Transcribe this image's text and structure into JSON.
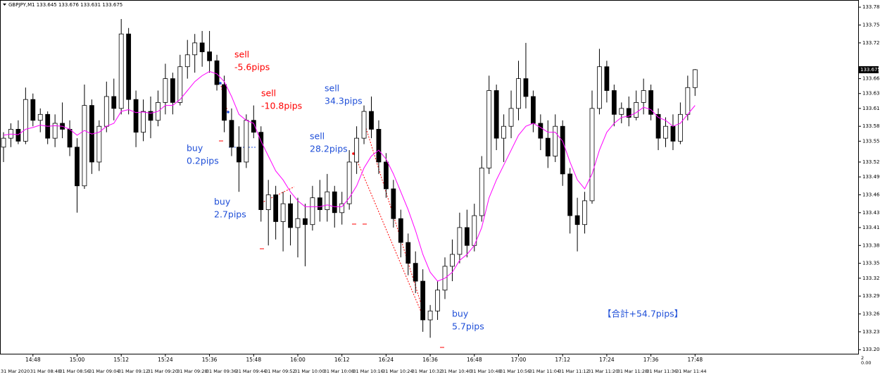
{
  "chart_data": {
    "type": "candlestick",
    "header": "GBPJPY,M1 133.645 133.676 133.631 133.675",
    "up_color": "#ffffff",
    "down_color": "#000000",
    "ma_color": "#ff00ff",
    "ylim": [
      133.197,
      133.792
    ],
    "yticks": [
      {
        "value": 133.78,
        "label": "133.780"
      },
      {
        "value": 133.75,
        "label": "133.750"
      },
      {
        "value": 133.72,
        "label": "133.720"
      },
      {
        "value": 133.66,
        "label": "133.660"
      },
      133.635,
      {
        "value": 133.61,
        "label": "133.610"
      },
      {
        "value": 133.58,
        "label": "133.580"
      },
      133.555,
      {
        "value": 133.52,
        "label": "133.520"
      },
      133.495,
      133.465,
      133.435,
      {
        "value": 133.41,
        "label": "133.410"
      },
      {
        "value": 133.38,
        "label": "133.380"
      },
      {
        "value": 133.35,
        "label": "133.350"
      },
      133.325,
      133.295,
      133.265,
      133.235,
      133.205
    ],
    "current_price": 133.675,
    "categories": [
      null,
      null,
      null,
      null,
      "14:48",
      null,
      null,
      null,
      null,
      null,
      "15:00",
      null,
      null,
      null,
      null,
      null,
      "15:12",
      null,
      null,
      null,
      null,
      null,
      "15:24",
      null,
      null,
      null,
      null,
      null,
      "15:36",
      null,
      null,
      null,
      null,
      null,
      "15:48",
      null,
      null,
      null,
      null,
      null,
      "16:00",
      null,
      null,
      null,
      null,
      null,
      "16:12",
      null,
      null,
      null,
      null,
      null,
      "16:24",
      null,
      null,
      null,
      null,
      null,
      "16:36",
      null,
      null,
      null,
      null,
      null,
      "16:48",
      null,
      null,
      null,
      null,
      null,
      "17:00",
      null,
      null,
      null,
      null,
      null,
      "17:12",
      null,
      null,
      null,
      null,
      null,
      "17:24",
      null,
      null,
      null,
      null,
      null,
      "17:36",
      null,
      null,
      null,
      null,
      null,
      "17:48"
    ],
    "candles": [
      [
        133.545,
        133.57,
        133.52,
        133.56
      ],
      [
        133.56,
        133.585,
        133.545,
        133.575
      ],
      [
        133.575,
        133.59,
        133.55,
        133.555
      ],
      [
        133.555,
        133.645,
        133.55,
        133.625
      ],
      [
        133.625,
        133.635,
        133.58,
        133.59
      ],
      [
        133.59,
        133.61,
        133.57,
        133.6
      ],
      [
        133.6,
        133.605,
        133.55,
        133.56
      ],
      [
        133.56,
        133.6,
        133.545,
        133.585
      ],
      [
        133.585,
        133.62,
        133.56,
        133.575
      ],
      [
        133.575,
        133.59,
        133.53,
        133.545
      ],
      [
        133.545,
        133.56,
        133.435,
        133.48
      ],
      [
        133.48,
        133.65,
        133.475,
        133.615
      ],
      [
        133.615,
        133.625,
        133.5,
        133.52
      ],
      [
        133.52,
        133.59,
        133.505,
        133.58
      ],
      [
        133.58,
        133.655,
        133.57,
        133.63
      ],
      [
        133.63,
        133.66,
        133.59,
        133.61
      ],
      [
        133.61,
        133.76,
        133.6,
        133.735
      ],
      [
        133.735,
        133.745,
        133.6,
        133.625
      ],
      [
        133.625,
        133.64,
        133.545,
        133.57
      ],
      [
        133.57,
        133.625,
        133.555,
        133.605
      ],
      [
        133.605,
        133.63,
        133.56,
        133.59
      ],
      [
        133.59,
        133.64,
        133.58,
        133.62
      ],
      [
        133.62,
        133.685,
        133.6,
        133.66
      ],
      [
        133.66,
        133.67,
        133.6,
        133.62
      ],
      [
        133.62,
        133.7,
        133.615,
        133.68
      ],
      [
        133.68,
        133.725,
        133.66,
        133.7
      ],
      [
        133.7,
        133.735,
        133.67,
        133.72
      ],
      [
        133.72,
        133.74,
        133.68,
        133.705
      ],
      [
        133.705,
        133.74,
        133.67,
        133.69
      ],
      [
        133.69,
        133.7,
        133.64,
        133.65
      ],
      [
        133.65,
        133.665,
        133.57,
        133.59
      ],
      [
        133.59,
        133.61,
        133.53,
        133.545
      ],
      [
        133.545,
        133.58,
        133.47,
        133.52
      ],
      [
        133.52,
        133.6,
        133.51,
        133.59
      ],
      [
        133.59,
        133.615,
        133.56,
        133.57
      ],
      [
        133.57,
        133.58,
        133.42,
        133.44
      ],
      [
        133.44,
        133.49,
        133.38,
        133.465
      ],
      [
        133.465,
        133.48,
        133.39,
        133.42
      ],
      [
        133.42,
        133.47,
        133.37,
        133.45
      ],
      [
        133.45,
        133.465,
        133.38,
        133.41
      ],
      [
        133.41,
        133.46,
        133.36,
        133.425
      ],
      [
        133.425,
        133.45,
        133.345,
        133.415
      ],
      [
        133.415,
        133.48,
        133.405,
        133.46
      ],
      [
        133.46,
        133.49,
        133.42,
        133.44
      ],
      [
        133.44,
        133.5,
        133.42,
        133.47
      ],
      [
        133.47,
        133.48,
        133.41,
        133.435
      ],
      [
        133.435,
        133.47,
        133.415,
        133.45
      ],
      [
        133.45,
        133.54,
        133.44,
        133.52
      ],
      [
        133.52,
        133.58,
        133.5,
        133.56
      ],
      [
        133.56,
        133.615,
        133.55,
        133.605
      ],
      [
        133.605,
        133.63,
        133.56,
        133.575
      ],
      [
        133.575,
        133.59,
        133.5,
        133.52
      ],
      [
        133.52,
        133.535,
        133.46,
        133.475
      ],
      [
        133.475,
        133.49,
        133.41,
        133.425
      ],
      [
        133.425,
        133.44,
        133.36,
        133.385
      ],
      [
        133.385,
        133.4,
        133.33,
        133.35
      ],
      [
        133.35,
        133.37,
        133.3,
        133.32
      ],
      [
        133.32,
        133.34,
        133.235,
        133.255
      ],
      [
        133.255,
        133.28,
        133.225,
        133.27
      ],
      [
        133.27,
        133.32,
        133.255,
        133.305
      ],
      [
        133.305,
        133.36,
        133.29,
        133.345
      ],
      [
        133.345,
        133.39,
        133.32,
        133.365
      ],
      [
        133.365,
        133.435,
        133.35,
        133.41
      ],
      [
        133.41,
        133.44,
        133.36,
        133.38
      ],
      [
        133.38,
        133.45,
        133.37,
        133.43
      ],
      [
        133.43,
        133.53,
        133.42,
        133.51
      ],
      [
        133.51,
        133.665,
        133.5,
        133.64
      ],
      [
        133.64,
        133.65,
        133.54,
        133.56
      ],
      [
        133.56,
        133.6,
        133.52,
        133.58
      ],
      [
        133.58,
        133.64,
        133.56,
        133.61
      ],
      [
        133.61,
        133.69,
        133.59,
        133.66
      ],
      [
        133.66,
        133.72,
        133.61,
        133.63
      ],
      [
        133.63,
        133.64,
        133.57,
        133.585
      ],
      [
        133.585,
        133.6,
        133.54,
        133.56
      ],
      [
        133.56,
        133.59,
        133.51,
        133.53
      ],
      [
        133.53,
        133.6,
        133.52,
        133.58
      ],
      [
        133.58,
        133.59,
        133.48,
        133.5
      ],
      [
        133.5,
        133.51,
        133.4,
        133.43
      ],
      [
        133.43,
        133.46,
        133.37,
        133.415
      ],
      [
        133.415,
        133.47,
        133.4,
        133.455
      ],
      [
        133.455,
        133.64,
        133.45,
        133.61
      ],
      [
        133.61,
        133.71,
        133.6,
        133.68
      ],
      [
        133.68,
        133.69,
        133.62,
        133.64
      ],
      [
        133.64,
        133.65,
        133.58,
        133.6
      ],
      [
        133.6,
        133.62,
        133.585,
        133.61
      ],
      [
        133.61,
        133.63,
        133.58,
        133.595
      ],
      [
        133.595,
        133.64,
        133.59,
        133.62
      ],
      [
        133.62,
        133.66,
        133.6,
        133.64
      ],
      [
        133.64,
        133.65,
        133.59,
        133.6
      ],
      [
        133.6,
        133.61,
        133.54,
        133.56
      ],
      [
        133.56,
        133.595,
        133.545,
        133.58
      ],
      [
        133.58,
        133.6,
        133.54,
        133.555
      ],
      [
        133.555,
        133.62,
        133.55,
        133.6
      ],
      [
        133.6,
        133.665,
        133.59,
        133.645
      ],
      [
        133.645,
        133.676,
        133.631,
        133.675
      ]
    ],
    "ma": [
      133.565,
      133.567,
      133.566,
      133.575,
      133.578,
      133.582,
      133.58,
      133.581,
      133.58,
      133.575,
      133.565,
      133.573,
      133.567,
      133.57,
      133.58,
      133.585,
      133.605,
      133.608,
      133.603,
      133.604,
      133.602,
      133.605,
      133.615,
      133.615,
      133.625,
      133.64,
      133.655,
      133.665,
      133.672,
      133.668,
      133.655,
      133.63,
      133.6,
      133.59,
      133.585,
      133.555,
      133.53,
      133.505,
      133.49,
      133.47,
      133.455,
      133.445,
      133.445,
      133.445,
      133.448,
      133.445,
      133.445,
      133.46,
      133.48,
      133.51,
      133.53,
      133.54,
      133.525,
      133.5,
      133.47,
      133.44,
      133.405,
      133.365,
      133.335,
      133.32,
      133.325,
      133.335,
      133.355,
      133.365,
      133.38,
      133.41,
      133.46,
      133.49,
      133.515,
      133.54,
      133.565,
      133.58,
      133.585,
      133.578,
      133.57,
      133.57,
      133.555,
      133.52,
      133.49,
      133.475,
      133.5,
      133.54,
      133.57,
      133.585,
      133.595,
      133.597,
      133.603,
      133.612,
      133.608,
      133.595,
      133.59,
      133.58,
      133.585,
      133.6,
      133.615
    ],
    "lower_time_labels": [
      "31 Mar 2020",
      "31 Mar 08:48",
      "31 Mar 08:56",
      "31 Mar 09:04",
      "31 Mar 09:12",
      "31 Mar 09:20",
      "31 Mar 09:28",
      "31 Mar 09:36",
      "31 Mar 09:44",
      "31 Mar 09:52",
      "31 Mar 10:00",
      "31 Mar 10:08",
      "31 Mar 10:16",
      "31 Mar 10:24",
      "31 Mar 10:32",
      "31 Mar 10:40",
      "31 Mar 10:48",
      "31 Mar 10:56",
      "31 Mar 11:04",
      "31 Mar 11:12",
      "31 Mar 11:20",
      "31 Mar 11:28",
      "31 Mar 11:36",
      "31 Mar 11:44"
    ],
    "corner_labels": [
      "2",
      "0.00"
    ],
    "annotations": [
      {
        "lines": [
          "sell",
          "-5.6pips"
        ],
        "color": "#ff0000"
      },
      {
        "lines": [
          "sell",
          "-10.8pips"
        ],
        "color": "#ff0000"
      },
      {
        "lines": [
          "sell",
          "34.3pips"
        ],
        "color": "#1f4fd8"
      },
      {
        "lines": [
          "sell",
          "28.2pips"
        ],
        "color": "#1f4fd8"
      },
      {
        "lines": [
          "buy",
          "0.2pips"
        ],
        "color": "#1f4fd8"
      },
      {
        "lines": [
          "buy",
          "2.7pips"
        ],
        "color": "#1f4fd8"
      },
      {
        "lines": [
          "buy",
          "5.7pips"
        ],
        "color": "#1f4fd8"
      }
    ],
    "total": {
      "text": "【合計+54.7pips】",
      "color": "#1f4fd8"
    }
  }
}
